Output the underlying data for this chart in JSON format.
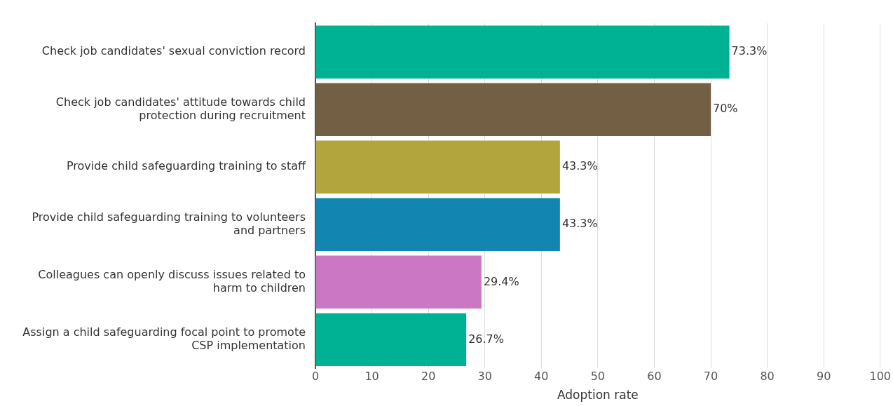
{
  "chart_data": {
    "type": "bar",
    "orientation": "horizontal",
    "categories": [
      "Check job candidates' sexual conviction record",
      "Check job candidates' attitude towards child protection during recruitment",
      "Provide child safeguarding training to staff",
      "Provide child safeguarding training to volunteers and partners",
      "Colleagues can openly discuss issues related to harm to children",
      "Assign a child safeguarding focal point to promote CSP implementation"
    ],
    "values": [
      73.3,
      70,
      43.3,
      43.3,
      29.4,
      26.7
    ],
    "colors": [
      "#00b294",
      "#725f44",
      "#b2a53e",
      "#1286b0",
      "#cc77c4",
      "#00b294"
    ],
    "value_labels": [
      "73.3%",
      "70%",
      "43.3%",
      "43.3%",
      "29.4%",
      "26.7%"
    ],
    "xlim": [
      0,
      100
    ],
    "xticks": [
      0,
      10,
      20,
      30,
      40,
      50,
      60,
      70,
      80,
      90,
      100
    ],
    "xlabel": "Adoption rate",
    "grid": "x",
    "legend": false
  }
}
